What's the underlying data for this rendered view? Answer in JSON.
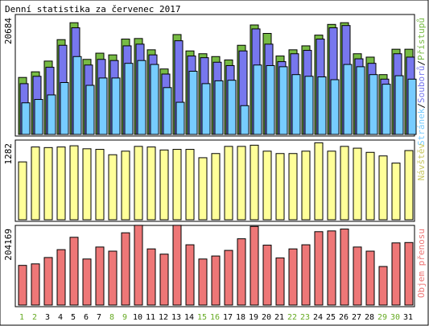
{
  "chart_data": {
    "type": "bar",
    "title": "Denní statistika za červenec 2017",
    "categories": [
      "1",
      "2",
      "3",
      "4",
      "5",
      "6",
      "7",
      "8",
      "9",
      "10",
      "11",
      "12",
      "13",
      "14",
      "15",
      "16",
      "17",
      "18",
      "19",
      "20",
      "21",
      "22",
      "23",
      "24",
      "25",
      "26",
      "27",
      "28",
      "29",
      "30",
      "31"
    ],
    "weekend_days": [
      "1",
      "2",
      "8",
      "9",
      "15",
      "16",
      "22",
      "23",
      "29",
      "30"
    ],
    "panels": [
      {
        "id": "hits",
        "max_label": "20684",
        "ymax": 20684,
        "right_label_parts": [
          "Stránek",
          "/",
          "Souborů",
          "/",
          "Přístupů"
        ],
        "series": [
          {
            "name": "Přístupů",
            "color": "#77bb44",
            "values": [
              10100,
              11100,
              13000,
              16800,
              19800,
              13300,
              14400,
              14100,
              16900,
              17000,
              15000,
              11600,
              17700,
              14800,
              14300,
              13800,
              13200,
              15800,
              19400,
              17900,
              13900,
              15000,
              15700,
              17600,
              19500,
              19800,
              14300,
              13700,
              10600,
              15100,
              15100
            ]
          },
          {
            "name": "Souborů",
            "color": "#7777ee",
            "values": [
              9000,
              10300,
              11900,
              15800,
              18900,
              12300,
              13300,
              13100,
              15700,
              16000,
              14100,
              10700,
              16600,
              13900,
              13600,
              12800,
              12200,
              14800,
              18700,
              16000,
              12900,
              14300,
              14900,
              16900,
              18900,
              19300,
              13400,
              12600,
              9800,
              14300,
              13700
            ]
          },
          {
            "name": "Stránek",
            "color": "#77ccff",
            "values": [
              5600,
              6200,
              7000,
              9200,
              13800,
              8700,
              10000,
              10000,
              12600,
              13100,
              12400,
              8300,
              5700,
              11200,
              9000,
              9500,
              9600,
              5100,
              12300,
              12200,
              12000,
              10600,
              10300,
              10200,
              9700,
              12400,
              12000,
              10600,
              8900,
              10400,
              9800
            ]
          }
        ]
      },
      {
        "id": "visits",
        "max_label": "1282",
        "ymax": 1282,
        "right_label_parts": [
          "Návštěv"
        ],
        "series": [
          {
            "name": "Návštěv",
            "color": "#ffff99",
            "values": [
              970,
              1220,
              1210,
              1220,
              1240,
              1190,
              1180,
              1090,
              1150,
              1230,
              1220,
              1170,
              1180,
              1180,
              1040,
              1110,
              1230,
              1230,
              1250,
              1150,
              1110,
              1110,
              1150,
              1290,
              1150,
              1230,
              1200,
              1130,
              1070,
              950,
              1160
            ]
          }
        ]
      },
      {
        "id": "traffic",
        "max_label": "204169",
        "ymax": 204169,
        "right_label_parts": [
          "Objem přenosu"
        ],
        "series": [
          {
            "name": "Objem přenosu",
            "color": "#ee7777",
            "values": [
              106000,
              110000,
              127000,
              148000,
              181000,
              123000,
              155000,
              144000,
              193000,
              213000,
              150000,
              136000,
              213000,
              161000,
              123000,
              131000,
              146000,
              177000,
              210000,
              160000,
              126000,
              150000,
              161000,
              196000,
              198000,
              203000,
              155000,
              144000,
              103000,
              166000,
              167000
            ]
          }
        ]
      }
    ],
    "colors": {
      "weekday_label": "#000000",
      "weekend_label": "#66aa22",
      "visits_label": "#c8c860",
      "traffic_label": "#ee7777",
      "hits_label_stranek": "#77ccff",
      "hits_label_sep": "#000000",
      "hits_label_souboru": "#7777ee",
      "hits_label_pristupu": "#77bb44"
    }
  }
}
